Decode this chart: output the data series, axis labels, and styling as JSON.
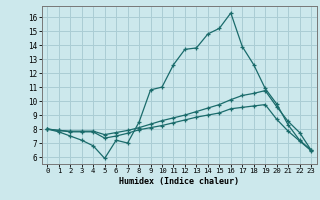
{
  "title": "",
  "xlabel": "Humidex (Indice chaleur)",
  "xlim": [
    -0.5,
    23.5
  ],
  "ylim": [
    5.5,
    16.8
  ],
  "yticks": [
    6,
    7,
    8,
    9,
    10,
    11,
    12,
    13,
    14,
    15,
    16
  ],
  "xticks": [
    0,
    1,
    2,
    3,
    4,
    5,
    6,
    7,
    8,
    9,
    10,
    11,
    12,
    13,
    14,
    15,
    16,
    17,
    18,
    19,
    20,
    21,
    22,
    23
  ],
  "bg_color": "#cce8ec",
  "grid_color": "#aacdd4",
  "line_color": "#1a6b6b",
  "lines": [
    {
      "x": [
        0,
        1,
        2,
        3,
        4,
        5,
        6,
        7,
        8,
        9,
        10,
        11,
        12,
        13,
        14,
        15,
        16,
        17,
        18,
        19,
        20,
        21,
        22,
        23
      ],
      "y": [
        8.0,
        7.8,
        7.5,
        7.2,
        6.8,
        5.9,
        7.2,
        7.0,
        8.5,
        10.8,
        11.0,
        12.6,
        13.7,
        13.8,
        14.8,
        15.2,
        16.3,
        13.9,
        12.6,
        10.9,
        9.8,
        8.3,
        7.2,
        6.5
      ]
    },
    {
      "x": [
        0,
        1,
        2,
        3,
        4,
        5,
        6,
        7,
        8,
        9,
        10,
        11,
        12,
        13,
        14,
        15,
        16,
        17,
        18,
        19,
        20,
        21,
        22,
        23
      ],
      "y": [
        8.0,
        7.9,
        7.85,
        7.85,
        7.85,
        7.6,
        7.75,
        7.9,
        8.1,
        8.35,
        8.6,
        8.8,
        9.0,
        9.25,
        9.5,
        9.75,
        10.1,
        10.4,
        10.55,
        10.75,
        9.6,
        8.55,
        7.75,
        6.5
      ]
    },
    {
      "x": [
        0,
        1,
        2,
        3,
        4,
        5,
        6,
        7,
        8,
        9,
        10,
        11,
        12,
        13,
        14,
        15,
        16,
        17,
        18,
        19,
        20,
        21,
        22,
        23
      ],
      "y": [
        8.0,
        7.9,
        7.8,
        7.8,
        7.8,
        7.35,
        7.5,
        7.7,
        7.95,
        8.1,
        8.25,
        8.45,
        8.65,
        8.85,
        9.0,
        9.15,
        9.45,
        9.55,
        9.65,
        9.75,
        8.7,
        7.85,
        7.15,
        6.45
      ]
    }
  ]
}
